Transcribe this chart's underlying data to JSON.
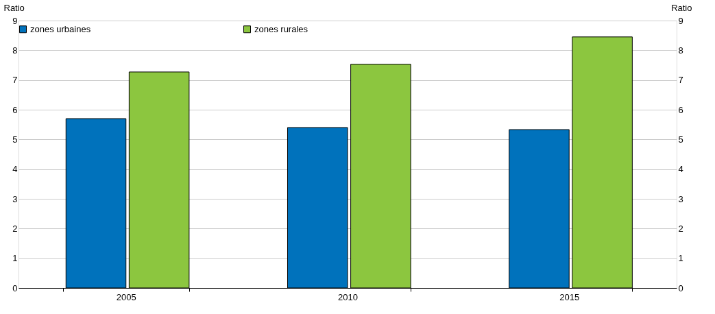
{
  "chart_data": {
    "type": "bar",
    "ylabel": "Ratio",
    "y2label": "Ratio",
    "categories": [
      "2005",
      "2010",
      "2015"
    ],
    "series": [
      {
        "name": "zones urbaines",
        "color": "#0072bc",
        "values": [
          5.7,
          5.4,
          5.33
        ]
      },
      {
        "name": "zones rurales",
        "color": "#8cc63f",
        "values": [
          7.27,
          7.53,
          8.45
        ]
      }
    ],
    "ylim": [
      0,
      9
    ],
    "yticks": [
      0,
      1,
      2,
      3,
      4,
      5,
      6,
      7,
      8,
      9
    ],
    "y2lim": [
      0,
      9
    ],
    "y2ticks": [
      0,
      1,
      2,
      3,
      4,
      5,
      6,
      7,
      8,
      9
    ],
    "grid": "y",
    "legend": "top"
  }
}
